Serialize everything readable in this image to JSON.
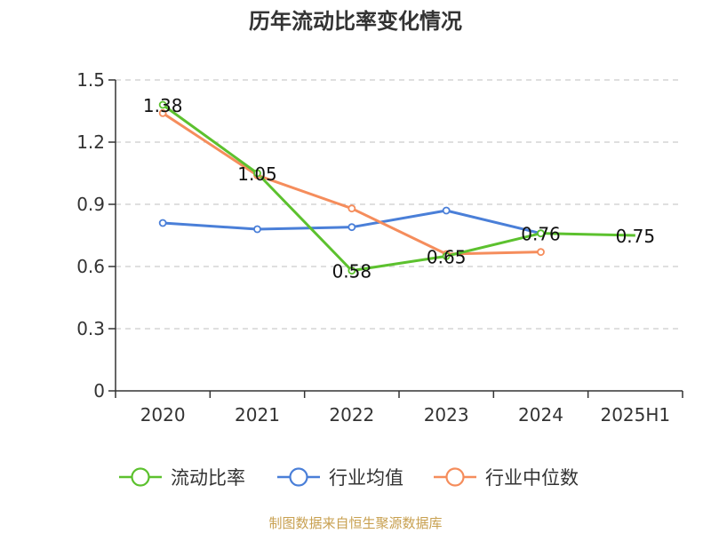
{
  "chart_data": {
    "type": "line",
    "title": "历年流动比率变化情况",
    "categories": [
      "2020",
      "2021",
      "2022",
      "2023",
      "2024",
      "2025H1"
    ],
    "ylim": [
      0,
      1.5
    ],
    "y_ticks": [
      "0",
      "0.3",
      "0.6",
      "0.9",
      "1.2",
      "1.5"
    ],
    "grid": "horizontal dashed",
    "legend_position": "bottom",
    "series": [
      {
        "name": "流动比率",
        "color": "#5cc12e",
        "values": [
          1.38,
          1.05,
          0.58,
          0.65,
          0.76,
          0.75
        ],
        "data_labels": [
          "1.38",
          "1.05",
          "0.58",
          "0.65",
          "0.76",
          "0.75"
        ]
      },
      {
        "name": "行业均值",
        "color": "#4a7fd8",
        "values": [
          0.81,
          0.78,
          0.79,
          0.87,
          0.76,
          null
        ]
      },
      {
        "name": "行业中位数",
        "color": "#f58d5c",
        "values": [
          1.34,
          1.04,
          0.88,
          0.66,
          0.67,
          null
        ]
      }
    ]
  },
  "source": "制图数据来自恒生聚源数据库"
}
